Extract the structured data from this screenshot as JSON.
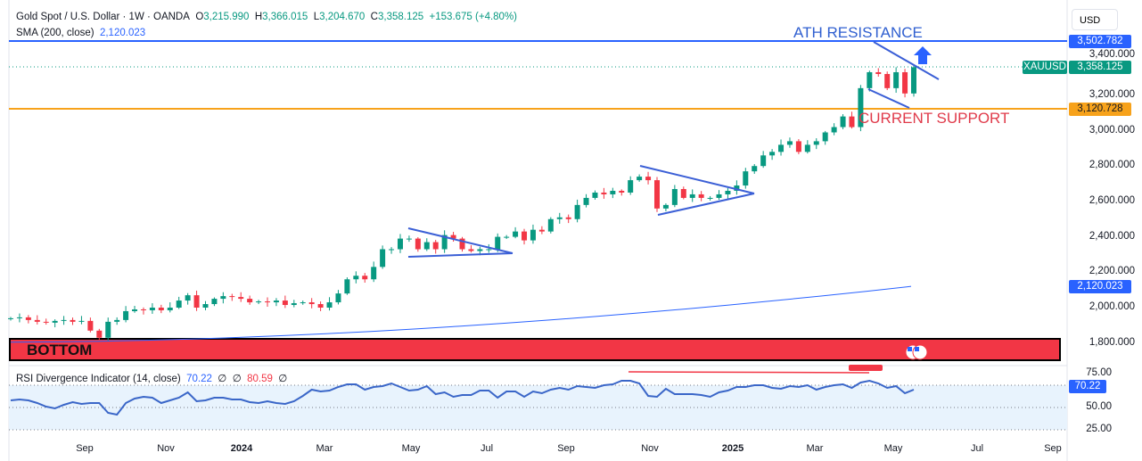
{
  "header": {
    "symbol": "Gold Spot / U.S. Dollar · 1W · OANDA",
    "o_label": "O",
    "open": "3,215.990",
    "h_label": "H",
    "high": "3,366.015",
    "l_label": "L",
    "low": "3,204.670",
    "c_label": "C",
    "close": "3,358.125",
    "change": "+153.675 (+4.80%)"
  },
  "sma": {
    "label": "SMA (200, close)",
    "value": "2,120.023"
  },
  "rsi": {
    "label": "RSI Divergence Indicator (14, close)",
    "value": "70.22",
    "sym1": "∅",
    "sym2": "∅",
    "value2": "80.59",
    "sym3": "∅"
  },
  "currency": "USD",
  "price_axis": [
    "3,400.000",
    "3,200.000",
    "3,000.000",
    "2,800.000",
    "2,600.000",
    "2,400.000",
    "2,200.000",
    "2,000.000",
    "1,800.000"
  ],
  "rsi_axis": [
    "75.00",
    "50.00",
    "25.00"
  ],
  "tags": {
    "ath": "3,502.782",
    "ticker": "XAUUSD",
    "last": "3,358.125",
    "support": "3,120.728",
    "sma": "2,120.023",
    "rsi": "70.22"
  },
  "time_axis": [
    "Sep",
    "Nov",
    "2024",
    "Mar",
    "May",
    "Jul",
    "Sep",
    "Nov",
    "2025",
    "Mar",
    "May",
    "Jul",
    "Sep"
  ],
  "annotations": {
    "ath": "ATH RESISTANCE",
    "support": "CURRENT SUPPORT",
    "bottom": "BOTTOM"
  },
  "colors": {
    "up": "#089981",
    "down": "#f23645",
    "blue": "#2962ff",
    "orange": "#f7a21b"
  },
  "chart_data": {
    "type": "candlestick",
    "closes": [
      1940,
      1945,
      1930,
      1920,
      1915,
      1925,
      1930,
      1920,
      1925,
      1870,
      1830,
      1920,
      1930,
      1980,
      1990,
      1985,
      2000,
      1985,
      2000,
      2040,
      2070,
      2000,
      2020,
      2050,
      2065,
      2060,
      2050,
      2030,
      2035,
      2030,
      2040,
      2015,
      2025,
      2030,
      2020,
      2000,
      2030,
      2080,
      2160,
      2180,
      2160,
      2230,
      2330,
      2330,
      2390,
      2390,
      2330,
      2370,
      2330,
      2410,
      2390,
      2330,
      2320,
      2330,
      2330,
      2400,
      2400,
      2430,
      2380,
      2440,
      2430,
      2500,
      2510,
      2500,
      2580,
      2620,
      2650,
      2640,
      2660,
      2650,
      2720,
      2740,
      2720,
      2560,
      2580,
      2670,
      2620,
      2640,
      2620,
      2620,
      2640,
      2660,
      2690,
      2770,
      2800,
      2860,
      2880,
      2920,
      2940,
      2880,
      2920,
      2940,
      2990,
      3020,
      3080,
      3020,
      3240,
      3330,
      3320,
      3240,
      3330,
      3210,
      3358
    ],
    "rsi": [
      58,
      59,
      58,
      55,
      51,
      49,
      53,
      56,
      54,
      55,
      55,
      44,
      42,
      55,
      60,
      62,
      61,
      55,
      58,
      61,
      67,
      57,
      58,
      61,
      61,
      59,
      59,
      56,
      55,
      57,
      55,
      54,
      57,
      63,
      70,
      68,
      69,
      73,
      76,
      76,
      70,
      73,
      74,
      77,
      73,
      69,
      70,
      74,
      65,
      67,
      62,
      64,
      64,
      69,
      69,
      61,
      68,
      68,
      62,
      68,
      66,
      70,
      72,
      70,
      74,
      73,
      72,
      75,
      76,
      80,
      80,
      77,
      63,
      62,
      71,
      65,
      65,
      65,
      64,
      62,
      67,
      69,
      73,
      73,
      75,
      75,
      72,
      71,
      74,
      73,
      75,
      70,
      73,
      75,
      76,
      72,
      78,
      80,
      77,
      72,
      74,
      66,
      70
    ],
    "sma_start": 1805,
    "sma_end": 2120.023,
    "price_range": [
      1700,
      3560
    ],
    "levels": {
      "ath": 3502.782,
      "support": 3120.728
    }
  }
}
